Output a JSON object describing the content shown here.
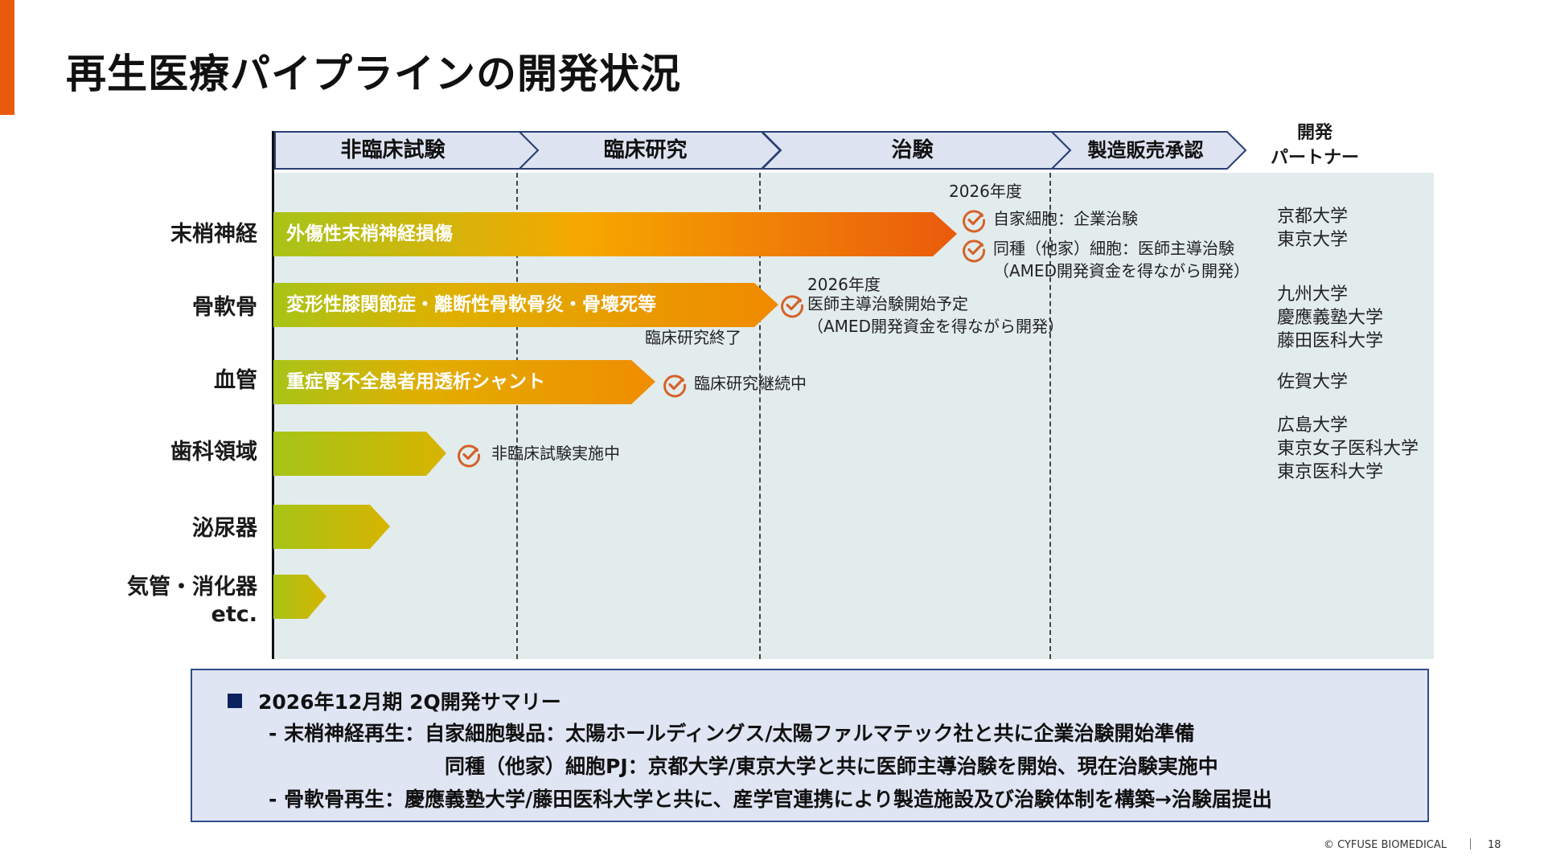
{
  "title": "再生医療パイプラインの開発状況",
  "phases": [
    "非臨床試験",
    "臨床研究",
    "治験",
    "製造販売承認"
  ],
  "partner_header": [
    "開発",
    "パートナー"
  ],
  "rows": [
    {
      "label": [
        "末梢神経"
      ],
      "arrow": "外傷性末梢神経損傷"
    },
    {
      "label": [
        "骨軟骨"
      ],
      "arrow": "変形性膝関節症・離断性骨軟骨炎・骨壊死等"
    },
    {
      "label": [
        "血管"
      ],
      "arrow": "重症腎不全患者用透析シャント"
    },
    {
      "label": [
        "歯科領域"
      ],
      "arrow": ""
    },
    {
      "label": [
        "泌尿器"
      ],
      "arrow": ""
    },
    {
      "label": [
        "気管・消化器",
        "etc."
      ],
      "arrow": ""
    }
  ],
  "notes": {
    "nerve_year": "2026年度",
    "nerve_status_1": "自家細胞：企業治験",
    "nerve_status_2": "同種（他家）細胞：医師主導治験",
    "nerve_status_2b": "（AMED開発資金を得ながら開発）",
    "cartilage_year": "2026年度",
    "cartilage_status": "医師主導治験開始予定",
    "cartilage_status_b": "（AMED開発資金を得ながら開発）",
    "cartilage_end": "臨床研究終了",
    "vessel_status": "臨床研究継続中",
    "dental_status": "非臨床試験実施中"
  },
  "partners": {
    "nerve": [
      "京都大学",
      "東京大学"
    ],
    "cartilage": [
      "九州大学",
      "慶應義塾大学",
      "藤田医科大学"
    ],
    "vessel": [
      "佐賀大学"
    ],
    "dental": [
      "広島大学",
      "東京女子医科大学",
      "東京医科大学"
    ]
  },
  "summary": {
    "title": "2026年12月期 2Q開発サマリー",
    "line1": "- 末梢神経再生：自家細胞製品：太陽ホールディングス/太陽ファルマテック社と共に企業治験開始準備",
    "line2": "同種（他家）細胞PJ：京都大学/東京大学と共に医師主導治験を開始、現在治験実施中",
    "line3": "- 骨軟骨再生：慶應義塾大学/藤田医科大学と共に、産学官連携により製造施設及び治験体制を構築→治験届提出"
  },
  "footer": {
    "copyright": "© CYFUSE BIOMEDICAL",
    "page": "18"
  },
  "colors": {
    "accent": "#ea5a0c",
    "check": "#d4622a",
    "phase_fill": "#dde3f1",
    "phase_border": "#2b3f73",
    "summary_border": "#2e4d8f"
  },
  "icons": {
    "status": "check-circle-icon"
  }
}
